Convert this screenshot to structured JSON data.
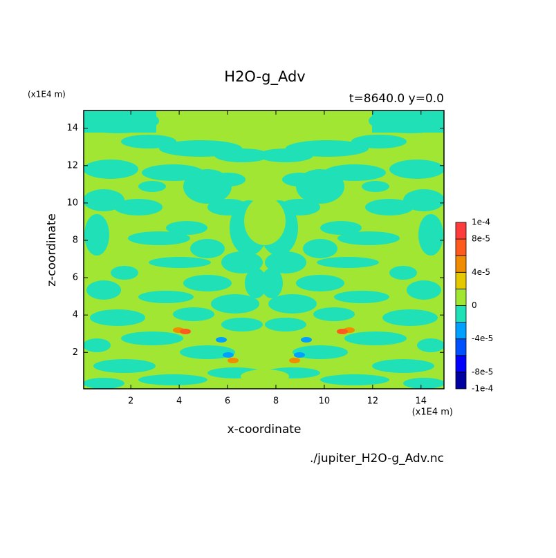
{
  "chart_data": {
    "type": "contour",
    "title": "H2O-g_Adv",
    "subtitle": "t=8640.0 y=0.0",
    "x_label": "x-coordinate",
    "y_label": "z-coordinate",
    "x_unit": "(x1E4 m)",
    "y_unit": "(x1E4 m)",
    "source": "./jupiter_H2O-g_Adv.nc",
    "xlim": [
      0.05,
      14.95
    ],
    "ylim": [
      0.05,
      14.95
    ],
    "xticks": [
      2,
      4,
      6,
      8,
      10,
      12,
      14
    ],
    "yticks": [
      2,
      4,
      6,
      8,
      10,
      12,
      14
    ],
    "colorbar": {
      "levels": [
        -0.0001,
        -8e-05,
        -6e-05,
        -4e-05,
        -2e-05,
        0,
        2e-05,
        4e-05,
        6e-05,
        8e-05,
        0.0001
      ],
      "colors": [
        "#0000a0",
        "#0000ff",
        "#0050ff",
        "#00a0ff",
        "#20e0b8",
        "#a0e632",
        "#e6c800",
        "#f08c00",
        "#ff5a1e",
        "#ff3c3c"
      ],
      "ticks": [
        {
          "value": -0.0001,
          "label": "-1e-4"
        },
        {
          "value": -8e-05,
          "label": "-8e-5"
        },
        {
          "value": -4e-05,
          "label": "-4e-5"
        },
        0,
        {
          "value": 4e-05,
          "label": "4e-5"
        },
        {
          "value": 8e-05,
          "label": "8e-5"
        },
        {
          "value": 0.0001,
          "label": "1e-4"
        }
      ]
    }
  }
}
